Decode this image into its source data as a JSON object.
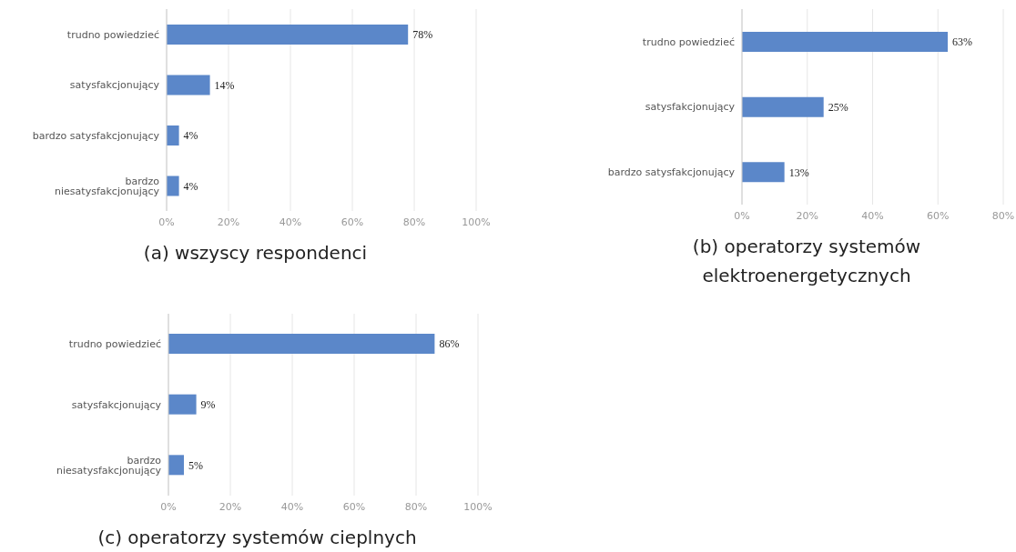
{
  "chart_data": [
    {
      "type": "bar",
      "orientation": "horizontal",
      "title": "(a) wszyscy respondenci",
      "categories": [
        "trudno powiedzieć",
        "satysfakcjonujący",
        "bardzo satysfakcjonujący",
        "bardzo niesatysfakcjonujący"
      ],
      "values": [
        78,
        14,
        4,
        4
      ],
      "value_labels": [
        "78%",
        "14%",
        "4%",
        "4%"
      ],
      "color": "#5b87c9",
      "xlim": [
        0,
        100
      ],
      "xticks": [
        {
          "value": 0,
          "label": "0%"
        },
        {
          "value": 20,
          "label": "20%"
        },
        {
          "value": 40,
          "label": "40%"
        },
        {
          "value": 60,
          "label": "60%"
        },
        {
          "value": 80,
          "label": "80%"
        },
        {
          "value": 100,
          "label": "100%"
        }
      ],
      "grid": "x",
      "legend": false
    },
    {
      "type": "bar",
      "orientation": "horizontal",
      "title": "(b) operatorzy systemów elektroenergetycznych",
      "categories": [
        "trudno powiedzieć",
        "satysfakcjonujący",
        "bardzo satysfakcjonujący"
      ],
      "values": [
        63,
        25,
        13
      ],
      "value_labels": [
        "63%",
        "25%",
        "13%"
      ],
      "color": "#5b87c9",
      "xlim": [
        0,
        80
      ],
      "xticks": [
        {
          "value": 0,
          "label": "0%"
        },
        {
          "value": 20,
          "label": "20%"
        },
        {
          "value": 40,
          "label": "40%"
        },
        {
          "value": 60,
          "label": "60%"
        },
        {
          "value": 80,
          "label": "80%"
        }
      ],
      "grid": "x",
      "legend": false
    },
    {
      "type": "bar",
      "orientation": "horizontal",
      "title": "(c) operatorzy systemów cieplnych",
      "categories": [
        "trudno powiedzieć",
        "satysfakcjonujący",
        "bardzo niesatysfakcjonujący"
      ],
      "values": [
        86,
        9,
        5
      ],
      "value_labels": [
        "86%",
        "9%",
        "5%"
      ],
      "color": "#5b87c9",
      "xlim": [
        0,
        100
      ],
      "xticks": [
        {
          "value": 0,
          "label": "0%"
        },
        {
          "value": 20,
          "label": "20%"
        },
        {
          "value": 40,
          "label": "40%"
        },
        {
          "value": 60,
          "label": "60%"
        },
        {
          "value": 80,
          "label": "80%"
        },
        {
          "value": 100,
          "label": "100%"
        }
      ],
      "grid": "x",
      "legend": false
    }
  ]
}
